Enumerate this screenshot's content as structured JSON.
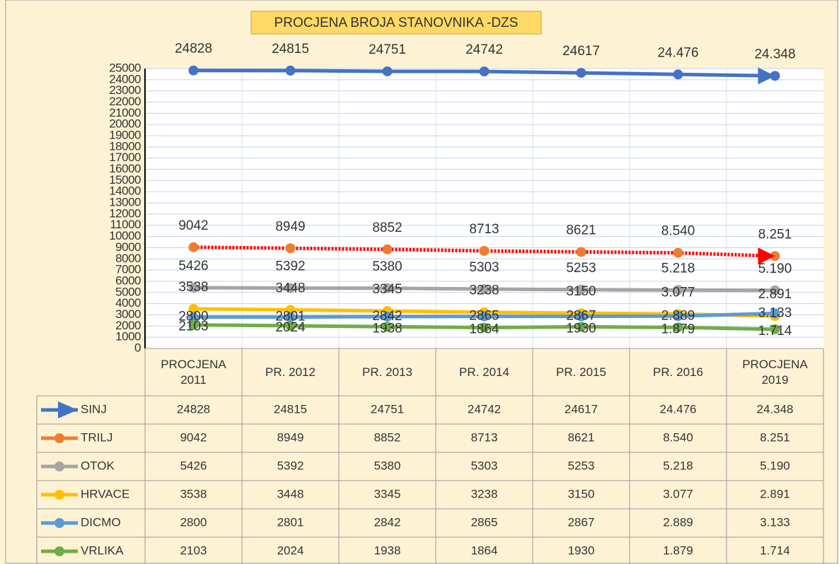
{
  "chart_data": {
    "type": "line",
    "title": "PROCJENA BROJA STANOVNIKA -DZS",
    "categories": [
      "PROCJENA 2011",
      "PR. 2012",
      "PR. 2013",
      "PR. 2014",
      "PR. 2015",
      "PR. 2016",
      "PROCJENA 2019"
    ],
    "ylim": [
      0,
      25000
    ],
    "yticks": [
      0,
      1000,
      2000,
      3000,
      4000,
      5000,
      6000,
      7000,
      8000,
      9000,
      10000,
      11000,
      12000,
      13000,
      14000,
      15000,
      16000,
      17000,
      18000,
      19000,
      20000,
      21000,
      22000,
      23000,
      24000,
      25000
    ],
    "grid": true,
    "series": [
      {
        "name": "SINJ",
        "color": "#4472c4",
        "values": [
          24828,
          24815,
          24751,
          24742,
          24617,
          24476,
          24348
        ],
        "value_labels": [
          "24828",
          "24815",
          "24751",
          "24742",
          "24617",
          "24.476",
          "24.348"
        ]
      },
      {
        "name": "TRILJ",
        "color": "#ed7d31",
        "values": [
          9042,
          8949,
          8852,
          8713,
          8621,
          8540,
          8251
        ],
        "value_labels": [
          "9042",
          "8949",
          "8852",
          "8713",
          "8621",
          "8.540",
          "8.251"
        ]
      },
      {
        "name": "OTOK",
        "color": "#a5a5a5",
        "values": [
          5426,
          5392,
          5380,
          5303,
          5253,
          5218,
          5190
        ],
        "value_labels": [
          "5426",
          "5392",
          "5380",
          "5303",
          "5253",
          "5.218",
          "5.190"
        ]
      },
      {
        "name": "HRVACE",
        "color": "#ffc000",
        "values": [
          3538,
          3448,
          3345,
          3238,
          3150,
          3077,
          2891
        ],
        "value_labels": [
          "3538",
          "3448",
          "3345",
          "3238",
          "3150",
          "3.077",
          "2.891"
        ]
      },
      {
        "name": "DICMO",
        "color": "#5b9bd5",
        "values": [
          2800,
          2801,
          2842,
          2865,
          2867,
          2889,
          3133
        ],
        "value_labels": [
          "2800",
          "2801",
          "2842",
          "2865",
          "2867",
          "2.889",
          "3.133"
        ]
      },
      {
        "name": "VRLIKA",
        "color": "#70ad47",
        "values": [
          2103,
          2024,
          1938,
          1864,
          1930,
          1879,
          1714
        ],
        "value_labels": [
          "2103",
          "2024",
          "1938",
          "1864",
          "1930",
          "1.879",
          "1.714"
        ]
      }
    ]
  }
}
